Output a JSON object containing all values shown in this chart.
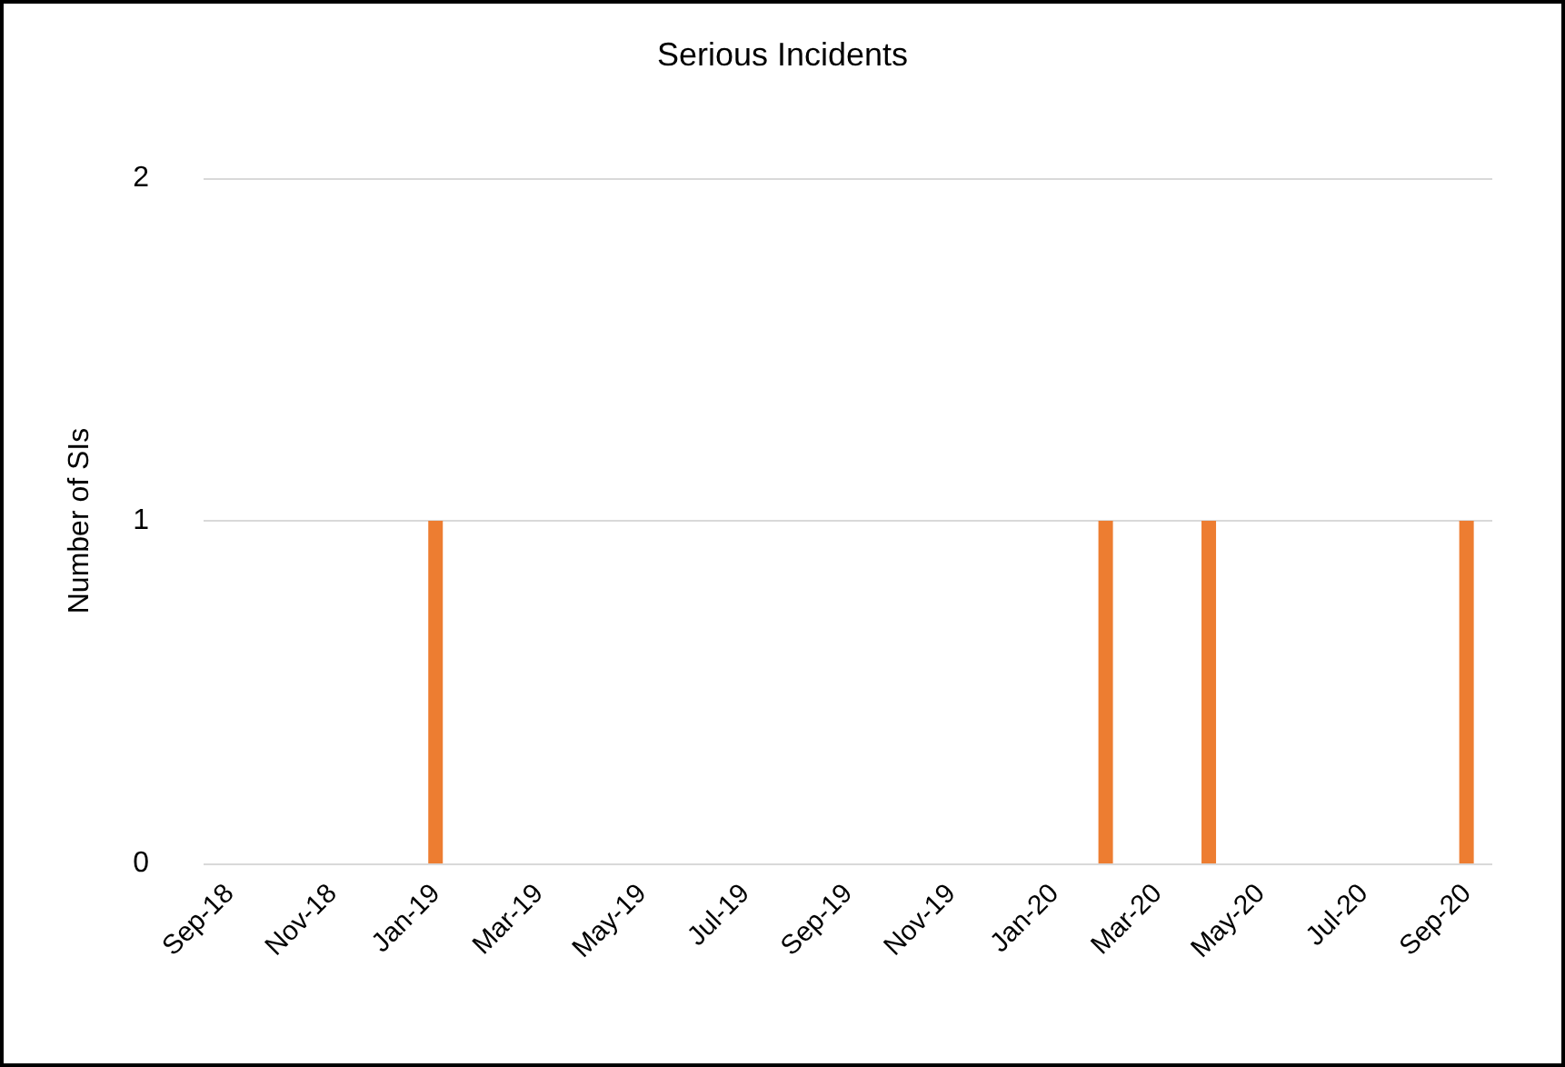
{
  "chart_data": {
    "type": "bar",
    "title": "Serious Incidents",
    "ylabel": "Number of SIs",
    "categories": [
      "Sep-18",
      null,
      "Nov-18",
      null,
      "Jan-19",
      null,
      "Mar-19",
      null,
      "May-19",
      null,
      "Jul-19",
      null,
      "Sep-19",
      null,
      "Nov-19",
      null,
      "Jan-20",
      null,
      "Mar-20",
      null,
      "May-20",
      null,
      "Jul-20",
      null,
      "Sep-20"
    ],
    "series": [
      {
        "color": "#ed7d31",
        "values": [
          0,
          0,
          0,
          0,
          1,
          0,
          0,
          0,
          0,
          0,
          0,
          0,
          0,
          0,
          0,
          0,
          0,
          1,
          0,
          1,
          0,
          0,
          0,
          0,
          1
        ]
      }
    ],
    "ylim": [
      0,
      2
    ],
    "yticks": [
      0,
      1,
      2
    ],
    "grid": "y"
  }
}
